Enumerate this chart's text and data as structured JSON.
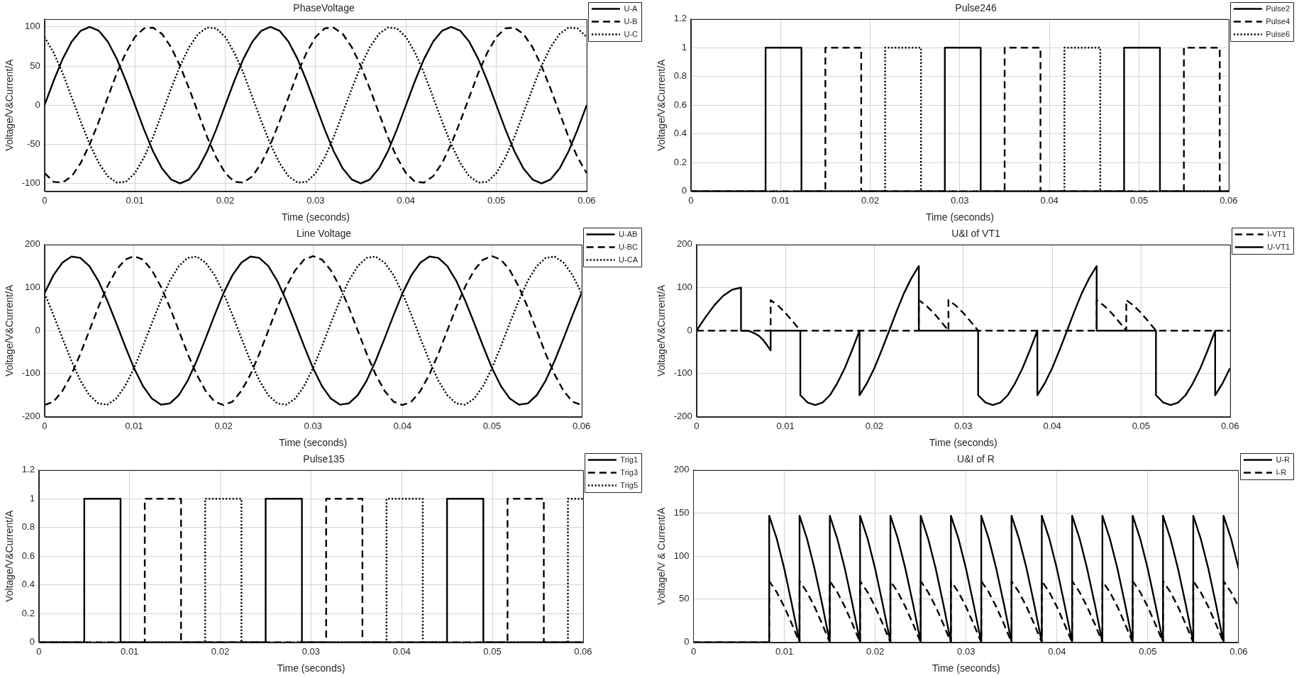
{
  "chart_data": [
    {
      "type": "line",
      "title": "PhaseVoltage",
      "xlabel": "Time (seconds)",
      "ylabel": "Voltage/V&Current/A",
      "xlim": [
        0,
        0.06
      ],
      "ylim": [
        -110,
        110
      ],
      "xticks": [
        0,
        0.01,
        0.02,
        0.03,
        0.04,
        0.05,
        0.06
      ],
      "yticks": [
        -100,
        -50,
        0,
        50,
        100
      ],
      "grid": true,
      "legend": "top right",
      "x": [
        0,
        0.001,
        0.002,
        0.003,
        0.004,
        0.005,
        0.006,
        0.007,
        0.008,
        0.009,
        0.01,
        0.011,
        0.012,
        0.013,
        0.014,
        0.015,
        0.016,
        0.017,
        0.018,
        0.019,
        0.02,
        0.021,
        0.022,
        0.023,
        0.024,
        0.025,
        0.026,
        0.027,
        0.028,
        0.029,
        0.03,
        0.031,
        0.032,
        0.033,
        0.034,
        0.035,
        0.036,
        0.037,
        0.038,
        0.039,
        0.04,
        0.041,
        0.042,
        0.043,
        0.044,
        0.045,
        0.046,
        0.047,
        0.048,
        0.049,
        0.05,
        0.051,
        0.052,
        0.053,
        0.054,
        0.055,
        0.056,
        0.057,
        0.058,
        0.059,
        0.06
      ],
      "series": [
        {
          "name": "U-A",
          "color": "#000000",
          "line_style": "solid",
          "values": [
            0,
            31,
            59,
            81,
            95,
            100,
            95,
            81,
            59,
            31,
            0,
            -31,
            -59,
            -81,
            -95,
            -100,
            -95,
            -81,
            -59,
            -31,
            0,
            31,
            59,
            81,
            95,
            100,
            95,
            81,
            59,
            31,
            0,
            -31,
            -59,
            -81,
            -95,
            -100,
            -95,
            -81,
            -59,
            -31,
            0,
            31,
            59,
            81,
            95,
            100,
            95,
            81,
            59,
            31,
            0,
            -31,
            -59,
            -81,
            -95,
            -100,
            -95,
            -81,
            -59,
            -31,
            0
          ]
        },
        {
          "name": "U-B",
          "color": "#000000",
          "line_style": "dashed",
          "values": [
            -87,
            -98,
            -99,
            -91,
            -74,
            -50,
            -21,
            10,
            41,
            67,
            87,
            98,
            99,
            91,
            74,
            50,
            21,
            -10,
            -41,
            -67,
            -87,
            -98,
            -99,
            -91,
            -74,
            -50,
            -21,
            10,
            41,
            67,
            87,
            98,
            99,
            91,
            74,
            50,
            21,
            -10,
            -41,
            -67,
            -87,
            -98,
            -99,
            -91,
            -74,
            -50,
            -21,
            10,
            41,
            67,
            87,
            98,
            99,
            91,
            74,
            50,
            21,
            -10,
            -41,
            -67,
            -87
          ]
        },
        {
          "name": "U-C",
          "color": "#000000",
          "line_style": "dotted",
          "values": [
            87,
            67,
            41,
            10,
            -21,
            -50,
            -74,
            -91,
            -99,
            -98,
            -87,
            -67,
            -41,
            -10,
            21,
            50,
            74,
            91,
            99,
            98,
            87,
            67,
            41,
            10,
            -21,
            -50,
            -74,
            -91,
            -99,
            -98,
            -87,
            -67,
            -41,
            -10,
            21,
            50,
            74,
            91,
            99,
            98,
            87,
            67,
            41,
            10,
            -21,
            -50,
            -74,
            -91,
            -99,
            -98,
            -87,
            -67,
            -41,
            -10,
            21,
            50,
            74,
            91,
            99,
            98,
            87
          ]
        }
      ]
    },
    {
      "type": "step",
      "title": "Pulse246",
      "xlabel": "Time (seconds)",
      "ylabel": "Voltage/V&Current/A",
      "xlim": [
        0,
        0.06
      ],
      "ylim": [
        0,
        1.2
      ],
      "xticks": [
        0,
        0.01,
        0.02,
        0.03,
        0.04,
        0.05,
        0.06
      ],
      "yticks": [
        0,
        0.2,
        0.4,
        0.6,
        0.8,
        1,
        1.2
      ],
      "grid": true,
      "legend": "top right",
      "series": [
        {
          "name": "Pulse2",
          "color": "#000000",
          "line_style": "solid",
          "x": [
            0,
            0.00833,
            0.01233,
            0.02833,
            0.03233,
            0.04833,
            0.05233,
            0.06
          ],
          "values": [
            0,
            1,
            0,
            1,
            0,
            1,
            0,
            0
          ]
        },
        {
          "name": "Pulse4",
          "color": "#000000",
          "line_style": "dashed",
          "x": [
            0,
            0.015,
            0.019,
            0.035,
            0.039,
            0.055,
            0.059,
            0.06
          ],
          "values": [
            0,
            1,
            0,
            1,
            0,
            1,
            0,
            0
          ]
        },
        {
          "name": "Pulse6",
          "color": "#000000",
          "line_style": "dotted",
          "x": [
            0,
            0.02167,
            0.02567,
            0.04167,
            0.04567,
            0.06
          ],
          "values": [
            0,
            1,
            0,
            1,
            0,
            0
          ]
        }
      ]
    },
    {
      "type": "line",
      "title": "Line Voltage",
      "xlabel": "Time (seconds)",
      "ylabel": "Voltage/V&Current/A",
      "xlim": [
        0,
        0.06
      ],
      "ylim": [
        -200,
        200
      ],
      "xticks": [
        0,
        0.01,
        0.02,
        0.03,
        0.04,
        0.05,
        0.06
      ],
      "yticks": [
        -200,
        -100,
        0,
        100,
        200
      ],
      "grid": true,
      "legend": "top right",
      "x": [
        0,
        0.001,
        0.002,
        0.003,
        0.004,
        0.005,
        0.006,
        0.007,
        0.008,
        0.009,
        0.01,
        0.011,
        0.012,
        0.013,
        0.014,
        0.015,
        0.016,
        0.017,
        0.018,
        0.019,
        0.02,
        0.021,
        0.022,
        0.023,
        0.024,
        0.025,
        0.026,
        0.027,
        0.028,
        0.029,
        0.03,
        0.031,
        0.032,
        0.033,
        0.034,
        0.035,
        0.036,
        0.037,
        0.038,
        0.039,
        0.04,
        0.041,
        0.042,
        0.043,
        0.044,
        0.045,
        0.046,
        0.047,
        0.048,
        0.049,
        0.05,
        0.051,
        0.052,
        0.053,
        0.054,
        0.055,
        0.056,
        0.057,
        0.058,
        0.059,
        0.06
      ],
      "series": [
        {
          "name": "U-AB",
          "color": "#000000",
          "line_style": "solid",
          "values": [
            87,
            129,
            158,
            172,
            169,
            150,
            116,
            70,
            18,
            -36,
            -87,
            -129,
            -158,
            -172,
            -169,
            -150,
            -116,
            -70,
            -18,
            36,
            87,
            129,
            158,
            172,
            169,
            150,
            116,
            70,
            18,
            -36,
            -87,
            -129,
            -158,
            -172,
            -169,
            -150,
            -116,
            -70,
            -18,
            36,
            87,
            129,
            158,
            172,
            169,
            150,
            116,
            70,
            18,
            -36,
            -87,
            -129,
            -158,
            -172,
            -169,
            -150,
            -116,
            -70,
            -18,
            36,
            87
          ]
        },
        {
          "name": "U-BC",
          "color": "#000000",
          "line_style": "dashed",
          "values": [
            -173,
            -165,
            -140,
            -102,
            -54,
            0,
            54,
            102,
            140,
            165,
            173,
            165,
            140,
            102,
            54,
            0,
            -54,
            -102,
            -140,
            -165,
            -173,
            -165,
            -140,
            -102,
            -54,
            0,
            54,
            102,
            140,
            165,
            173,
            165,
            140,
            102,
            54,
            0,
            -54,
            -102,
            -140,
            -165,
            -173,
            -165,
            -140,
            -102,
            -54,
            0,
            54,
            102,
            140,
            165,
            173,
            165,
            140,
            102,
            54,
            0,
            -54,
            -102,
            -140,
            -165,
            -173
          ]
        },
        {
          "name": "U-CA",
          "color": "#000000",
          "line_style": "dotted",
          "values": [
            87,
            36,
            -18,
            -70,
            -116,
            -150,
            -169,
            -172,
            -158,
            -129,
            -87,
            -36,
            18,
            70,
            116,
            150,
            169,
            172,
            158,
            129,
            87,
            36,
            -18,
            -70,
            -116,
            -150,
            -169,
            -172,
            -158,
            -129,
            -87,
            -36,
            18,
            70,
            116,
            150,
            169,
            172,
            158,
            129,
            87,
            36,
            -18,
            -70,
            -116,
            -150,
            -169,
            -172,
            -158,
            -129,
            -87,
            -36,
            18,
            70,
            116,
            150,
            169,
            172,
            158,
            129,
            87
          ]
        }
      ]
    },
    {
      "type": "line",
      "title": "U&I of VT1",
      "xlabel": "Time (seconds)",
      "ylabel": "Voltage/V&Current/A",
      "xlim": [
        0,
        0.06
      ],
      "ylim": [
        -200,
        200
      ],
      "xticks": [
        0,
        0.01,
        0.02,
        0.03,
        0.04,
        0.05,
        0.06
      ],
      "yticks": [
        -200,
        -100,
        0,
        100,
        200
      ],
      "grid": true,
      "legend": "top right",
      "series": [
        {
          "name": "I-VT1",
          "color": "#000000",
          "line_style": "dashed",
          "x": [
            0,
            0.00833,
            0.00833,
            0.00917,
            0.01,
            0.01083,
            0.01167,
            0.025,
            0.025,
            0.02583,
            0.02667,
            0.0275,
            0.02833,
            0.02833,
            0.02917,
            0.03,
            0.03083,
            0.03167,
            0.045,
            0.045,
            0.04583,
            0.04667,
            0.0475,
            0.04833,
            0.04833,
            0.04917,
            0.05,
            0.05083,
            0.05167,
            0.06
          ],
          "values": [
            0,
            0,
            71,
            58,
            41,
            21,
            0,
            0,
            71,
            58,
            41,
            21,
            0,
            71,
            58,
            41,
            21,
            0,
            0,
            71,
            58,
            41,
            21,
            0,
            71,
            58,
            41,
            21,
            0,
            0
          ]
        },
        {
          "name": "U-VT1",
          "color": "#000000",
          "line_style": "solid",
          "x": [
            0,
            0.001,
            0.002,
            0.003,
            0.004,
            0.005,
            0.005,
            0.0058,
            0.0065,
            0.007,
            0.0075,
            0.008,
            0.00833,
            0.00833,
            0.01167,
            0.01167,
            0.0125,
            0.01333,
            0.01417,
            0.015,
            0.01583,
            0.01667,
            0.0175,
            0.01833,
            0.01833,
            0.01917,
            0.02,
            0.02083,
            0.02167,
            0.0225,
            0.02333,
            0.02417,
            0.025,
            0.025,
            0.03167,
            0.03167,
            0.0325,
            0.03333,
            0.03417,
            0.035,
            0.03583,
            0.03667,
            0.0375,
            0.03833,
            0.03833,
            0.03917,
            0.04,
            0.04083,
            0.04167,
            0.0425,
            0.04333,
            0.04417,
            0.045,
            0.045,
            0.05167,
            0.05167,
            0.0525,
            0.05333,
            0.05417,
            0.055,
            0.05583,
            0.05667,
            0.0575,
            0.05833,
            0.05833,
            0.05917,
            0.06
          ],
          "values": [
            0,
            31,
            59,
            81,
            95,
            100,
            0,
            0,
            -6,
            -12,
            -22,
            -36,
            -46,
            0,
            0,
            -150,
            -167,
            -173,
            -167,
            -150,
            -122,
            -87,
            -45,
            0,
            -150,
            -122,
            -87,
            -45,
            0,
            45,
            87,
            122,
            150,
            0,
            0,
            -150,
            -167,
            -173,
            -167,
            -150,
            -122,
            -87,
            -45,
            0,
            -150,
            -122,
            -87,
            -45,
            0,
            45,
            87,
            122,
            150,
            0,
            0,
            -150,
            -167,
            -173,
            -167,
            -150,
            -122,
            -87,
            -45,
            0,
            -150,
            -122,
            -87
          ]
        }
      ]
    },
    {
      "type": "step",
      "title": "Pulse135",
      "xlabel": "Time (seconds)",
      "ylabel": "Voltage/V&Current/A",
      "xlim": [
        0,
        0.06
      ],
      "ylim": [
        0,
        1.2
      ],
      "xticks": [
        0,
        0.01,
        0.02,
        0.03,
        0.04,
        0.05,
        0.06
      ],
      "yticks": [
        0,
        0.2,
        0.4,
        0.6,
        0.8,
        1,
        1.2
      ],
      "grid": true,
      "legend": "top right",
      "series": [
        {
          "name": "Trig1",
          "color": "#000000",
          "line_style": "solid",
          "x": [
            0,
            0.005,
            0.009,
            0.025,
            0.029,
            0.045,
            0.049,
            0.06
          ],
          "values": [
            0,
            1,
            0,
            1,
            0,
            1,
            0,
            0
          ]
        },
        {
          "name": "Trig3",
          "color": "#000000",
          "line_style": "dashed",
          "x": [
            0,
            0.01167,
            0.01567,
            0.03167,
            0.03567,
            0.05167,
            0.05567,
            0.06
          ],
          "values": [
            0,
            1,
            0,
            1,
            0,
            1,
            0,
            0
          ]
        },
        {
          "name": "Trig5",
          "color": "#000000",
          "line_style": "dotted",
          "x": [
            0,
            0.01833,
            0.02233,
            0.03833,
            0.04233,
            0.05833,
            0.06
          ],
          "values": [
            0,
            1,
            0,
            1,
            0,
            1,
            1
          ]
        }
      ]
    },
    {
      "type": "line",
      "title": "U&I of R",
      "xlabel": "Time (seconds)",
      "ylabel": "Voltage/V & Current/A",
      "xlim": [
        0,
        0.06
      ],
      "ylim": [
        0,
        200
      ],
      "xticks": [
        0,
        0.01,
        0.02,
        0.03,
        0.04,
        0.05,
        0.06
      ],
      "yticks": [
        0,
        50,
        100,
        150,
        200
      ],
      "grid": true,
      "legend": "top right",
      "x": [
        0,
        0.00833,
        0.00833,
        0.00917,
        0.01,
        0.01083,
        0.01167,
        0.01167,
        0.0125,
        0.01333,
        0.01417,
        0.015,
        0.015,
        0.01583,
        0.01667,
        0.0175,
        0.01833,
        0.01833,
        0.01917,
        0.02,
        0.02083,
        0.02167,
        0.02167,
        0.0225,
        0.02333,
        0.02417,
        0.025,
        0.025,
        0.02583,
        0.02667,
        0.0275,
        0.02833,
        0.02833,
        0.02917,
        0.03,
        0.03083,
        0.03167,
        0.03167,
        0.0325,
        0.03333,
        0.03417,
        0.035,
        0.035,
        0.03583,
        0.03667,
        0.0375,
        0.03833,
        0.03833,
        0.03917,
        0.04,
        0.04083,
        0.04167,
        0.04167,
        0.0425,
        0.04333,
        0.04417,
        0.045,
        0.045,
        0.04583,
        0.04667,
        0.0475,
        0.04833,
        0.04833,
        0.04917,
        0.05,
        0.05083,
        0.05167,
        0.05167,
        0.0525,
        0.05333,
        0.05417,
        0.055,
        0.055,
        0.05583,
        0.05667,
        0.0575,
        0.05833,
        0.05833,
        0.05917,
        0.06
      ],
      "series": [
        {
          "name": "U-R",
          "color": "#000000",
          "line_style": "solid",
          "values": [
            0,
            0,
            147,
            120,
            85,
            44,
            0,
            147,
            120,
            85,
            44,
            0,
            147,
            120,
            85,
            44,
            0,
            147,
            120,
            85,
            44,
            0,
            147,
            120,
            85,
            44,
            0,
            147,
            120,
            85,
            44,
            0,
            147,
            120,
            85,
            44,
            0,
            147,
            120,
            85,
            44,
            0,
            147,
            120,
            85,
            44,
            0,
            147,
            120,
            85,
            44,
            0,
            147,
            120,
            85,
            44,
            0,
            147,
            120,
            85,
            44,
            0,
            147,
            120,
            85,
            44,
            0,
            147,
            120,
            85,
            44,
            0,
            147,
            120,
            85,
            44,
            0,
            147,
            120,
            85
          ]
        },
        {
          "name": "I-R",
          "color": "#000000",
          "line_style": "dashed",
          "values": [
            0,
            0,
            71,
            58,
            41,
            21,
            0,
            71,
            58,
            41,
            21,
            0,
            71,
            58,
            41,
            21,
            0,
            71,
            58,
            41,
            21,
            0,
            71,
            58,
            41,
            21,
            0,
            71,
            58,
            41,
            21,
            0,
            71,
            58,
            41,
            21,
            0,
            71,
            58,
            41,
            21,
            0,
            71,
            58,
            41,
            21,
            0,
            71,
            58,
            41,
            21,
            0,
            71,
            58,
            41,
            21,
            0,
            71,
            58,
            41,
            21,
            0,
            71,
            58,
            41,
            21,
            0,
            71,
            58,
            41,
            21,
            0,
            71,
            58,
            41,
            21,
            0,
            71,
            58,
            41
          ]
        }
      ]
    }
  ]
}
